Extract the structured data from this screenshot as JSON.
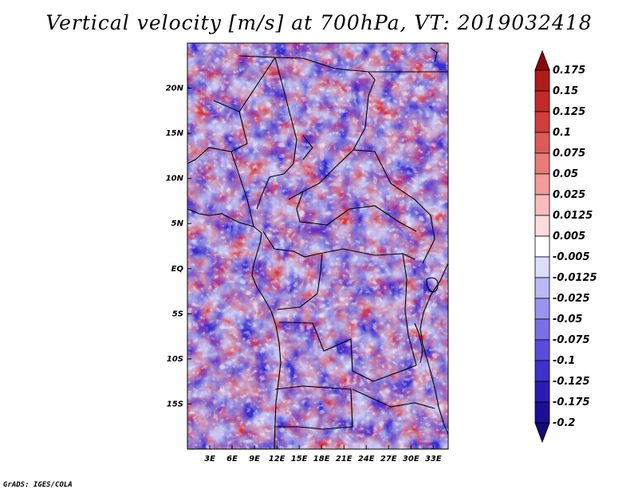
{
  "title": "Vertical velocity [m/s] at 700hPa, VT: 2019032418",
  "credit": "GrADS: IGES/COLA",
  "map": {
    "lon_range": [
      0,
      35
    ],
    "lat_range": [
      -20,
      25
    ],
    "lon_ticks": [
      {
        "value": 3,
        "label": "3E"
      },
      {
        "value": 6,
        "label": "6E"
      },
      {
        "value": 9,
        "label": "9E"
      },
      {
        "value": 12,
        "label": "12E"
      },
      {
        "value": 15,
        "label": "15E"
      },
      {
        "value": 18,
        "label": "18E"
      },
      {
        "value": 21,
        "label": "21E"
      },
      {
        "value": 24,
        "label": "24E"
      },
      {
        "value": 27,
        "label": "27E"
      },
      {
        "value": 30,
        "label": "30E"
      },
      {
        "value": 33,
        "label": "33E"
      }
    ],
    "lat_ticks": [
      {
        "value": 20,
        "label": "20N"
      },
      {
        "value": 15,
        "label": "15N"
      },
      {
        "value": 10,
        "label": "10N"
      },
      {
        "value": 5,
        "label": "5N"
      },
      {
        "value": 0,
        "label": "EQ"
      },
      {
        "value": -5,
        "label": "5S"
      },
      {
        "value": -10,
        "label": "10S"
      },
      {
        "value": -15,
        "label": "15S"
      }
    ]
  },
  "colorbar": {
    "levels": [
      {
        "label": "0.175",
        "color": "#9e0f0f"
      },
      {
        "label": "0.15",
        "color": "#b01c1c"
      },
      {
        "label": "0.125",
        "color": "#c32a2a"
      },
      {
        "label": "0.1",
        "color": "#d23d3d"
      },
      {
        "label": "0.075",
        "color": "#de5a5a"
      },
      {
        "label": "0.05",
        "color": "#e87a7a"
      },
      {
        "label": "0.025",
        "color": "#f29c9c"
      },
      {
        "label": "0.0125",
        "color": "#f8bcbc"
      },
      {
        "label": "0.005",
        "color": "#fcdcdc"
      },
      {
        "label": "-0.005",
        "color": "#ffffff"
      },
      {
        "label": "-0.0125",
        "color": "#dedbfb"
      },
      {
        "label": "-0.025",
        "color": "#bdb7f5"
      },
      {
        "label": "-0.05",
        "color": "#9c93ef"
      },
      {
        "label": "-0.075",
        "color": "#7b6fe6"
      },
      {
        "label": "-0.1",
        "color": "#5b4bdc"
      },
      {
        "label": "-0.125",
        "color": "#3f31cc"
      },
      {
        "label": "-0.175",
        "color": "#2a1bb5"
      },
      {
        "label": "-0.2",
        "color": "#1c0f96"
      }
    ],
    "top_color": "#8a0a0a",
    "bottom_color": "#14087a"
  }
}
